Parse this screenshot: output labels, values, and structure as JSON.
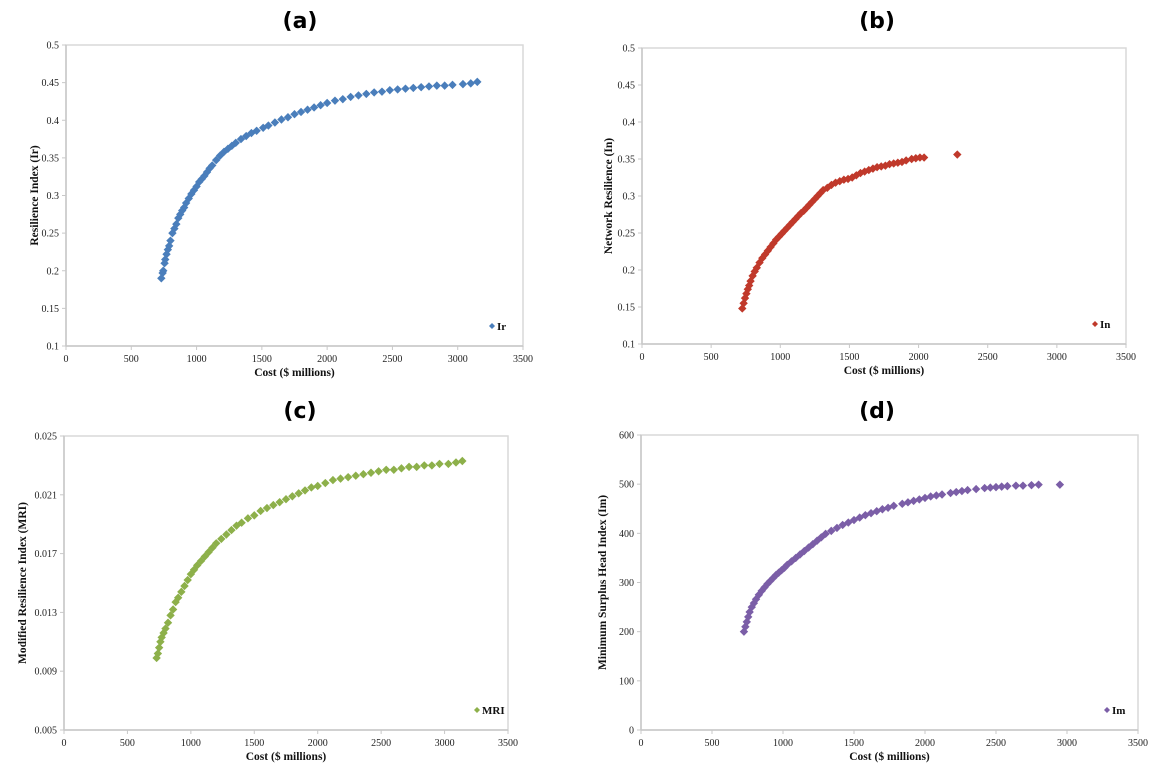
{
  "chart_data": [
    {
      "type": "scatter",
      "panel_label": "(a)",
      "title": "(a)",
      "xlabel": "Cost ($ millions)",
      "ylabel": "Resilience Index (Ir)",
      "xlim": [
        0,
        3500
      ],
      "ylim": [
        0.1,
        0.5
      ],
      "xticks": [
        "0",
        "500",
        "1000",
        "1500",
        "2000",
        "2500",
        "3000",
        "3500"
      ],
      "yticks": [
        "0.1",
        "0.15",
        "0.2",
        "0.25",
        "0.3",
        "0.35",
        "0.4",
        "0.45",
        "0.5"
      ],
      "legend": {
        "label": "Ir",
        "position": "bottom-right"
      },
      "color": "#4a7ebb",
      "series": [
        {
          "name": "Ir",
          "x": [
            730,
            740,
            745,
            755,
            760,
            770,
            780,
            790,
            800,
            815,
            830,
            845,
            860,
            875,
            890,
            905,
            920,
            940,
            960,
            980,
            1000,
            1020,
            1040,
            1060,
            1080,
            1100,
            1120,
            1150,
            1180,
            1210,
            1240,
            1270,
            1300,
            1340,
            1380,
            1420,
            1460,
            1510,
            1550,
            1600,
            1650,
            1700,
            1750,
            1800,
            1850,
            1900,
            1950,
            2000,
            2060,
            2120,
            2180,
            2240,
            2300,
            2360,
            2420,
            2480,
            2540,
            2600,
            2660,
            2720,
            2780,
            2840,
            2900,
            2960,
            3040,
            3100,
            3150
          ],
          "y": [
            0.19,
            0.197,
            0.2,
            0.21,
            0.215,
            0.222,
            0.228,
            0.233,
            0.24,
            0.25,
            0.256,
            0.262,
            0.27,
            0.275,
            0.28,
            0.284,
            0.29,
            0.296,
            0.302,
            0.307,
            0.312,
            0.318,
            0.322,
            0.326,
            0.331,
            0.336,
            0.34,
            0.347,
            0.353,
            0.358,
            0.362,
            0.366,
            0.37,
            0.375,
            0.379,
            0.383,
            0.386,
            0.39,
            0.393,
            0.397,
            0.401,
            0.404,
            0.408,
            0.411,
            0.414,
            0.417,
            0.42,
            0.423,
            0.426,
            0.428,
            0.431,
            0.433,
            0.435,
            0.437,
            0.438,
            0.44,
            0.441,
            0.442,
            0.443,
            0.444,
            0.445,
            0.446,
            0.446,
            0.447,
            0.448,
            0.449,
            0.451
          ]
        }
      ]
    },
    {
      "type": "scatter",
      "panel_label": "(b)",
      "title": "(b)",
      "xlabel": "Cost ($ millions)",
      "ylabel": "Network Resilience (In)",
      "xlim": [
        0,
        3500
      ],
      "ylim": [
        0.1,
        0.5
      ],
      "xticks": [
        "0",
        "500",
        "1000",
        "1500",
        "2000",
        "2500",
        "3000",
        "3500"
      ],
      "yticks": [
        "0.1",
        "0.15",
        "0.2",
        "0.25",
        "0.3",
        "0.35",
        "0.4",
        "0.45",
        "0.5"
      ],
      "legend": {
        "label": "In",
        "position": "bottom-right"
      },
      "color": "#c0392b",
      "series": [
        {
          "name": "In",
          "x": [
            725,
            735,
            745,
            755,
            765,
            775,
            785,
            800,
            815,
            830,
            850,
            870,
            890,
            910,
            930,
            950,
            970,
            990,
            1010,
            1030,
            1050,
            1070,
            1090,
            1110,
            1130,
            1150,
            1170,
            1190,
            1210,
            1230,
            1250,
            1270,
            1290,
            1310,
            1340,
            1370,
            1400,
            1430,
            1460,
            1490,
            1520,
            1550,
            1580,
            1610,
            1640,
            1670,
            1700,
            1730,
            1760,
            1790,
            1820,
            1850,
            1880,
            1910,
            1950,
            1980,
            2010,
            2040,
            2280
          ],
          "y": [
            0.148,
            0.155,
            0.162,
            0.168,
            0.174,
            0.179,
            0.185,
            0.192,
            0.198,
            0.203,
            0.21,
            0.216,
            0.221,
            0.226,
            0.231,
            0.236,
            0.241,
            0.245,
            0.249,
            0.253,
            0.257,
            0.261,
            0.265,
            0.269,
            0.273,
            0.277,
            0.28,
            0.284,
            0.288,
            0.292,
            0.296,
            0.3,
            0.304,
            0.308,
            0.311,
            0.315,
            0.318,
            0.32,
            0.322,
            0.323,
            0.325,
            0.328,
            0.331,
            0.333,
            0.335,
            0.337,
            0.339,
            0.34,
            0.341,
            0.343,
            0.344,
            0.345,
            0.346,
            0.348,
            0.35,
            0.351,
            0.352,
            0.352,
            0.356
          ]
        }
      ]
    },
    {
      "type": "scatter",
      "panel_label": "(c)",
      "title": "(c)",
      "xlabel": "Cost ($ millions)",
      "ylabel": "Modified Resilience Index (MRI)",
      "xlim": [
        0,
        3500
      ],
      "ylim": [
        0.005,
        0.025
      ],
      "xticks": [
        "0",
        "500",
        "1000",
        "1500",
        "2000",
        "2500",
        "3000",
        "3500"
      ],
      "yticks": [
        "0.005",
        "0.009",
        "0.013",
        "0.017",
        "0.021",
        "0.025"
      ],
      "legend": {
        "label": "MRI",
        "position": "bottom-right"
      },
      "color": "#8db04a",
      "series": [
        {
          "name": "MRI",
          "x": [
            730,
            740,
            750,
            760,
            770,
            785,
            800,
            820,
            840,
            860,
            880,
            900,
            925,
            950,
            975,
            1000,
            1025,
            1050,
            1080,
            1110,
            1140,
            1170,
            1200,
            1240,
            1280,
            1320,
            1360,
            1400,
            1450,
            1500,
            1550,
            1600,
            1650,
            1700,
            1750,
            1800,
            1850,
            1900,
            1950,
            2000,
            2060,
            2120,
            2180,
            2240,
            2300,
            2360,
            2420,
            2480,
            2540,
            2600,
            2660,
            2720,
            2780,
            2840,
            2900,
            2960,
            3030,
            3090,
            3140
          ],
          "y": [
            0.0099,
            0.0102,
            0.0106,
            0.011,
            0.0113,
            0.0116,
            0.0119,
            0.0123,
            0.0128,
            0.0132,
            0.0137,
            0.014,
            0.0144,
            0.0148,
            0.0152,
            0.0156,
            0.0159,
            0.0162,
            0.0165,
            0.0168,
            0.0171,
            0.0174,
            0.0177,
            0.018,
            0.0183,
            0.0186,
            0.0189,
            0.0191,
            0.0194,
            0.0196,
            0.0199,
            0.0201,
            0.0203,
            0.0205,
            0.0207,
            0.0209,
            0.0211,
            0.0213,
            0.0215,
            0.0216,
            0.0218,
            0.022,
            0.0221,
            0.0222,
            0.0223,
            0.0224,
            0.0225,
            0.0226,
            0.0227,
            0.0227,
            0.0228,
            0.0229,
            0.0229,
            0.023,
            0.023,
            0.0231,
            0.0231,
            0.0232,
            0.0233
          ]
        }
      ]
    },
    {
      "type": "scatter",
      "panel_label": "(d)",
      "title": "(d)",
      "xlabel": "Cost ($ millions)",
      "ylabel": "Minimum Surplus Head Index (Im)",
      "xlim": [
        0,
        3500
      ],
      "ylim": [
        0,
        600
      ],
      "xticks": [
        "0",
        "500",
        "1000",
        "1500",
        "2000",
        "2500",
        "3000",
        "3500"
      ],
      "yticks": [
        "0",
        "100",
        "200",
        "300",
        "400",
        "500",
        "600"
      ],
      "legend": {
        "label": "Im",
        "position": "bottom-right"
      },
      "color": "#7b5ea7",
      "series": [
        {
          "name": "Im",
          "x": [
            725,
            735,
            745,
            755,
            765,
            780,
            795,
            810,
            830,
            850,
            870,
            890,
            910,
            930,
            950,
            970,
            990,
            1010,
            1030,
            1060,
            1090,
            1120,
            1150,
            1180,
            1210,
            1240,
            1270,
            1300,
            1340,
            1380,
            1420,
            1460,
            1500,
            1540,
            1580,
            1620,
            1660,
            1700,
            1740,
            1780,
            1840,
            1880,
            1920,
            1960,
            2000,
            2040,
            2080,
            2120,
            2180,
            2220,
            2260,
            2300,
            2360,
            2420,
            2460,
            2500,
            2540,
            2580,
            2640,
            2690,
            2750,
            2800,
            2950
          ],
          "y": [
            200,
            210,
            220,
            230,
            240,
            250,
            258,
            266,
            275,
            283,
            290,
            297,
            303,
            309,
            315,
            320,
            325,
            330,
            336,
            343,
            350,
            357,
            364,
            371,
            378,
            385,
            392,
            399,
            405,
            411,
            417,
            422,
            427,
            432,
            437,
            441,
            445,
            449,
            452,
            456,
            460,
            463,
            466,
            469,
            472,
            475,
            477,
            479,
            482,
            484,
            486,
            488,
            490,
            492,
            493,
            494,
            495,
            496,
            497,
            497,
            498,
            499,
            499
          ]
        }
      ]
    }
  ]
}
